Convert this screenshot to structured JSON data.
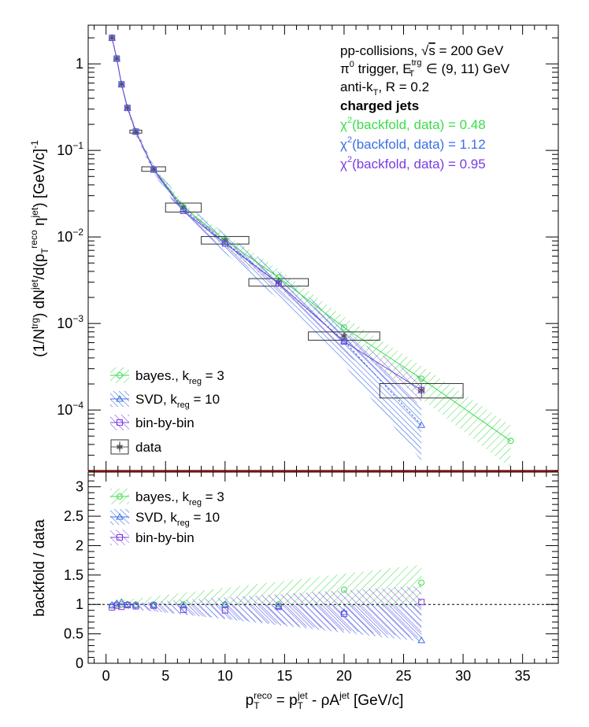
{
  "top_panel": {
    "ylabel_parts": [
      "(1/N",
      "trg",
      ") dN",
      "jet",
      "/d(p",
      "T",
      "reco",
      " η",
      "jet",
      ") [GeV/c]",
      "-1"
    ],
    "legend": [
      {
        "label": "bayes., k",
        "sub": "reg",
        "tail": " = 3"
      },
      {
        "label": "SVD, k",
        "sub": "reg",
        "tail": " = 10"
      },
      {
        "label": "bin-by-bin",
        "sub": "",
        "tail": ""
      },
      {
        "label": "data",
        "sub": "",
        "tail": ""
      }
    ],
    "info": {
      "line1_a": "pp-collisions, ",
      "line1_sqrt": "√",
      "line1_s": "s",
      "line1_b": " = 200 GeV",
      "line2_a": "π",
      "line2_sup": "0",
      "line2_b": " trigger, E",
      "line2_sup2": "trg",
      "line2_sub2": "T",
      "line2_c": " ∈ (9, 11) GeV",
      "line3_a": "anti-k",
      "line3_sub": "T",
      "line3_b": ", R = 0.2",
      "line4": "charged jets",
      "chi_lines": [
        {
          "chi": "χ",
          "sup": "2",
          "text": "(backfold, data) = 0.48",
          "color": "#3cdc4c"
        },
        {
          "chi": "χ",
          "sup": "2",
          "text": "(backfold, data) = 1.12",
          "color": "#3c6ee6"
        },
        {
          "chi": "χ",
          "sup": "2",
          "text": "(backfold, data) = 0.95",
          "color": "#7a3ce6"
        }
      ]
    }
  },
  "bottom_panel": {
    "ylabel": "backfold / data",
    "legend": [
      {
        "label": "bayes., k",
        "sub": "reg",
        "tail": " = 3"
      },
      {
        "label": "SVD, k",
        "sub": "reg",
        "tail": " = 10"
      },
      {
        "label": "bin-by-bin",
        "sub": "",
        "tail": ""
      }
    ]
  },
  "xlabel_parts": [
    "p",
    "T",
    "reco",
    " = p",
    "T",
    "jet",
    " - ρA",
    "jet",
    " [GeV/c]"
  ],
  "colors": {
    "bayes": "#3cdc4c",
    "svd": "#3c6ee6",
    "binbybin": "#7a3ce6",
    "data": "#555555"
  },
  "chart_data": [
    {
      "type": "scatter",
      "xlim": [
        -1.5,
        38
      ],
      "ylim": [
        2e-05,
        2.8
      ],
      "yscale": "log",
      "xticks": [
        0,
        5,
        10,
        15,
        20,
        25,
        30,
        35
      ],
      "yticks": [
        {
          "v": 0.0001,
          "base": "10",
          "exp": "−4"
        },
        {
          "v": 0.001,
          "base": "10",
          "exp": "−3"
        },
        {
          "v": 0.01,
          "base": "10",
          "exp": "−2"
        },
        {
          "v": 0.1,
          "base": "10",
          "exp": "−1"
        },
        {
          "v": 1,
          "base": "1",
          "exp": ""
        }
      ],
      "series": [
        {
          "key": "data",
          "x": [
            0.5,
            0.9,
            1.3,
            1.8,
            2.5,
            4.0,
            6.5,
            10.0,
            14.5,
            20.0,
            26.5
          ],
          "xerr": [
            0.0,
            0.0,
            0.0,
            0.0,
            0.5,
            1.0,
            1.5,
            2.0,
            2.5,
            3.0,
            3.5
          ],
          "y": [
            2.0,
            1.15,
            0.58,
            0.31,
            0.165,
            0.061,
            0.022,
            0.0092,
            0.003,
            0.00072,
            0.00017
          ],
          "yerr_rel": [
            0.03,
            0.03,
            0.03,
            0.04,
            0.04,
            0.06,
            0.12,
            0.1,
            0.1,
            0.11,
            0.19
          ]
        },
        {
          "key": "bayes",
          "x": [
            0.5,
            0.9,
            1.3,
            1.8,
            2.5,
            4.0,
            6.5,
            10.0,
            14.5,
            20.0,
            26.5,
            34.0
          ],
          "y": [
            2.0,
            1.15,
            0.58,
            0.31,
            0.165,
            0.061,
            0.022,
            0.0092,
            0.0034,
            0.0009,
            0.00023,
            4.4e-05
          ]
        },
        {
          "key": "svd",
          "x": [
            0.5,
            0.9,
            1.3,
            1.8,
            2.5,
            4.0,
            6.5,
            10.0,
            14.5,
            20.0,
            26.5
          ],
          "y": [
            2.0,
            1.15,
            0.58,
            0.31,
            0.165,
            0.061,
            0.021,
            0.0087,
            0.0029,
            0.00063,
            6.7e-05
          ]
        },
        {
          "key": "binbybin",
          "x": [
            0.5,
            0.9,
            1.3,
            1.8,
            2.5,
            4.0,
            6.5,
            10.0,
            14.5,
            20.0,
            26.5
          ],
          "y": [
            2.0,
            1.15,
            0.58,
            0.31,
            0.165,
            0.06,
            0.02,
            0.0084,
            0.0029,
            0.00062,
            0.00017
          ]
        }
      ]
    },
    {
      "type": "scatter",
      "xlim": [
        -1.5,
        38
      ],
      "ylim": [
        0,
        3.25
      ],
      "xticks": [
        0,
        5,
        10,
        15,
        20,
        25,
        30,
        35
      ],
      "yticks": [
        0,
        0.5,
        1,
        1.5,
        2,
        2.5,
        3
      ],
      "ytick_labels": [
        "0",
        "0.5",
        "1",
        "1.5",
        "2",
        "2.5",
        "3"
      ],
      "xtick_labels": [
        "0",
        "5",
        "10",
        "15",
        "20",
        "25",
        "30",
        "35"
      ],
      "reference_line": 1,
      "series": [
        {
          "key": "bayes",
          "x": [
            0.5,
            0.9,
            1.3,
            1.8,
            2.5,
            4.0,
            6.5,
            10.0,
            14.5,
            20.0,
            26.5
          ],
          "y": [
            0.98,
            1.0,
            1.0,
            1.0,
            1.0,
            1.0,
            1.0,
            1.0,
            1.0,
            1.25,
            1.37
          ]
        },
        {
          "key": "svd",
          "x": [
            0.5,
            0.9,
            1.3,
            1.8,
            2.5,
            4.0,
            6.5,
            10.0,
            14.5,
            20.0,
            26.5
          ],
          "y": [
            0.99,
            1.02,
            1.04,
            1.0,
            0.99,
            0.99,
            0.98,
            1.0,
            0.97,
            0.87,
            0.39
          ]
        },
        {
          "key": "binbybin",
          "x": [
            0.5,
            0.9,
            1.3,
            1.8,
            2.5,
            4.0,
            6.5,
            10.0,
            14.5,
            20.0,
            26.5
          ],
          "y": [
            0.95,
            0.98,
            0.96,
            0.99,
            0.97,
            0.98,
            0.91,
            0.9,
            0.96,
            0.84,
            1.04
          ]
        }
      ]
    }
  ]
}
